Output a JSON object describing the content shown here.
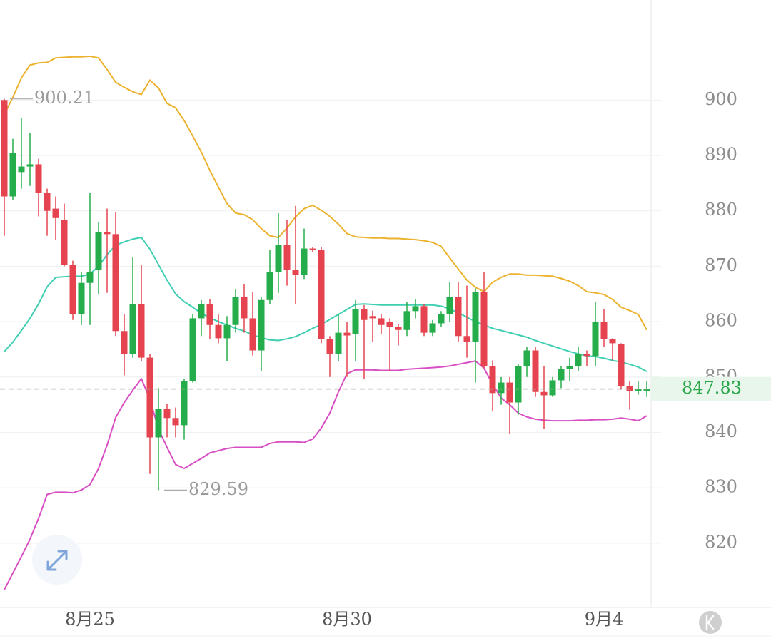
{
  "chart_data": {
    "type": "candlestick",
    "categories": [
      null,
      null,
      null,
      null,
      null,
      null,
      null,
      null,
      null,
      null,
      "8月25",
      null,
      null,
      null,
      null,
      null,
      null,
      null,
      null,
      null,
      null,
      null,
      null,
      null,
      null,
      null,
      null,
      null,
      null,
      null,
      null,
      null,
      null,
      null,
      null,
      null,
      null,
      null,
      null,
      null,
      "8月30",
      null,
      null,
      null,
      null,
      null,
      null,
      null,
      null,
      null,
      null,
      null,
      null,
      null,
      null,
      null,
      null,
      null,
      null,
      null,
      null,
      null,
      null,
      null,
      null,
      null,
      null,
      null,
      null,
      null,
      "9月4",
      null,
      null,
      null,
      null,
      null
    ],
    "open": [
      900,
      882.6,
      887,
      888,
      888.4,
      883.2,
      880.4,
      878.3,
      870.3,
      861.3,
      867,
      869.3,
      876.1,
      875.8,
      858.3,
      854.2,
      863.2,
      853.5,
      839.1,
      844.3,
      842.6,
      841.3,
      849.3,
      860.6,
      863.2,
      859.4,
      857,
      859.4,
      864.5,
      860.6,
      854.8,
      863.9,
      869,
      873.9,
      869.3,
      868.4,
      873.2,
      872.9,
      856.8,
      854.2,
      858,
      857.7,
      862.2,
      861,
      860.6,
      860,
      859,
      858.5,
      861.9,
      862.8,
      858,
      859.7,
      861.3,
      864.5,
      857.4,
      856.4,
      865.4,
      852,
      847.1,
      849,
      845.4,
      852,
      854.8,
      847.3,
      846.7,
      849.4,
      851.5,
      851.9,
      854.2,
      853.8,
      860,
      856.8,
      856,
      848.4,
      847.5,
      847.5
    ],
    "high": [
      900.21,
      893,
      896.8,
      894,
      889.4,
      884,
      882.6,
      881.3,
      871,
      869,
      883.2,
      878,
      880.4,
      879.7,
      861.3,
      871.6,
      870.3,
      854.2,
      848,
      845.2,
      844.5,
      849.7,
      861.3,
      863.9,
      864.1,
      861.3,
      861,
      865.8,
      866.7,
      865.4,
      864.5,
      872.9,
      879.6,
      878.3,
      880.9,
      876.8,
      873.5,
      873.5,
      857.4,
      861.3,
      860,
      863.9,
      863,
      862,
      861.3,
      860.6,
      859.5,
      863.6,
      864.1,
      863.2,
      860.3,
      861.9,
      867.1,
      867.1,
      866.5,
      866,
      869,
      853,
      850,
      850,
      852.3,
      855.5,
      855.5,
      852,
      850,
      852,
      853.5,
      855.5,
      854.8,
      863.6,
      862.2,
      857,
      856.1,
      849.3,
      849.3,
      849.3
    ],
    "low": [
      875.5,
      882,
      884,
      884.5,
      879,
      875.5,
      874.8,
      870,
      860.3,
      859.4,
      859.4,
      865,
      865.2,
      857.4,
      850.3,
      853.5,
      852.9,
      832.5,
      829.59,
      839.1,
      839.1,
      838.7,
      849,
      857.4,
      856.8,
      856.1,
      852.9,
      858,
      858,
      853.9,
      851,
      863.2,
      865.2,
      866.5,
      863.2,
      867.7,
      872.5,
      856.1,
      850,
      852.9,
      850,
      852.9,
      849.7,
      856.4,
      857.7,
      851,
      855.7,
      857.4,
      860.6,
      857.4,
      857.4,
      859,
      860,
      856.4,
      853.5,
      849,
      851.6,
      843.9,
      845,
      839.7,
      843.2,
      850,
      846.4,
      840.6,
      846.4,
      848,
      849.3,
      851,
      851.9,
      852,
      855.5,
      853,
      847.7,
      844.1,
      846.8,
      846.4
    ],
    "close": [
      882.6,
      890.5,
      888,
      888.4,
      883.2,
      880,
      878.7,
      870.3,
      861.3,
      867,
      869,
      876.1,
      875.8,
      858.3,
      854.2,
      863.2,
      853.5,
      839.1,
      844.3,
      842.6,
      841.3,
      849.3,
      860.6,
      863.2,
      859.4,
      857,
      859.4,
      864.5,
      860.6,
      854.8,
      863.9,
      869,
      873.9,
      869.3,
      868.4,
      873.2,
      872.9,
      856.8,
      854.2,
      858,
      857.5,
      862.2,
      860.3,
      860.6,
      859.4,
      859,
      858.5,
      861.9,
      862.8,
      858,
      859.7,
      861.3,
      864.5,
      857.4,
      856.4,
      865.4,
      852,
      847.1,
      849,
      845.4,
      852,
      854.8,
      847.3,
      846.7,
      849.4,
      851.5,
      851.9,
      854.2,
      853.8,
      860,
      856.8,
      856.1,
      848.4,
      847.5,
      847.8,
      847.83
    ],
    "up_color": "#26ad4b",
    "down_color": "#e5434f",
    "series": [
      {
        "color": "#ecb22e",
        "values": [
          897.4,
          900.5,
          904,
          906.3,
          906.7,
          906.8,
          907.6,
          907.7,
          907.8,
          907.8,
          907.9,
          907.6,
          905.5,
          903.2,
          902.3,
          901.5,
          901.0,
          903.6,
          902.2,
          899.4,
          898.6,
          896.3,
          893.5,
          890.6,
          887.3,
          884.3,
          881.3,
          879.6,
          879.3,
          878.4,
          876.8,
          875.5,
          875.2,
          876.9,
          878.9,
          880.4,
          881,
          880.1,
          879,
          877.6,
          875.9,
          875.3,
          875.2,
          875.1,
          875.1,
          875,
          875,
          874.9,
          874.8,
          874.6,
          874.3,
          873.6,
          871.5,
          869.5,
          867.5,
          866.2,
          865.4,
          867.1,
          868,
          868.6,
          868.6,
          868.4,
          868.4,
          868.3,
          868.2,
          867.8,
          867.3,
          866.5,
          865.4,
          865.2,
          864.9,
          864.0,
          862.6,
          862.0,
          861.3,
          858.5
        ]
      },
      {
        "color": "#3fcfb2",
        "values": [
          854.6,
          856.3,
          858.4,
          860.6,
          863.2,
          866.3,
          868,
          868.1,
          868.2,
          868.2,
          868.6,
          870,
          872.1,
          873.8,
          874.4,
          874.9,
          875.2,
          873.1,
          870.3,
          867.5,
          865,
          863.6,
          862.6,
          861.5,
          860.7,
          860,
          859.4,
          858.8,
          858.3,
          857.6,
          857.1,
          856.7,
          856.6,
          856.9,
          857.3,
          858,
          858.8,
          859.5,
          860.4,
          861.3,
          862.2,
          863.1,
          863.2,
          863.1,
          863.0,
          863.0,
          863.0,
          863.0,
          863.0,
          863.0,
          863.0,
          862.8,
          862.3,
          861.6,
          860.8,
          860.0,
          859.4,
          858.8,
          858.4,
          858.0,
          857.6,
          857.2,
          856.6,
          856.1,
          855.6,
          855.1,
          854.6,
          854.2,
          853.8,
          853.7,
          853.4,
          853.0,
          852.7,
          852.3,
          851.8,
          851.0
        ]
      },
      {
        "color": "#d84fc4",
        "values": [
          811.6,
          814.6,
          817.6,
          820.7,
          824.5,
          828.8,
          829.2,
          829.2,
          829.1,
          829.6,
          830.6,
          833.5,
          837.7,
          842.7,
          845.4,
          847.6,
          849.7,
          846,
          840.6,
          837.3,
          834.2,
          833.5,
          834.4,
          835.3,
          836.3,
          836.7,
          837.1,
          837.3,
          837.3,
          837.3,
          837.3,
          838,
          838.3,
          838.3,
          838.3,
          838.2,
          838.8,
          840.8,
          843.5,
          847.3,
          850.6,
          851.3,
          851.3,
          851.3,
          851.2,
          851.2,
          851.2,
          851.4,
          851.5,
          851.6,
          851.7,
          851.8,
          852,
          852.3,
          852.6,
          852.9,
          851.6,
          848.7,
          846.2,
          845,
          843.5,
          842.8,
          842.4,
          842.2,
          842.1,
          842.1,
          842.1,
          842.2,
          842.2,
          842.3,
          842.3,
          842.4,
          842.6,
          842.4,
          842.1,
          843
        ]
      }
    ],
    "annotations": [
      900.21,
      829.59
    ],
    "last_price": 847.83,
    "ylim": [
      808.4,
      918.06
    ],
    "yticks": [
      820,
      830,
      840,
      850,
      860,
      870,
      880,
      890,
      900
    ],
    "grid": true
  }
}
